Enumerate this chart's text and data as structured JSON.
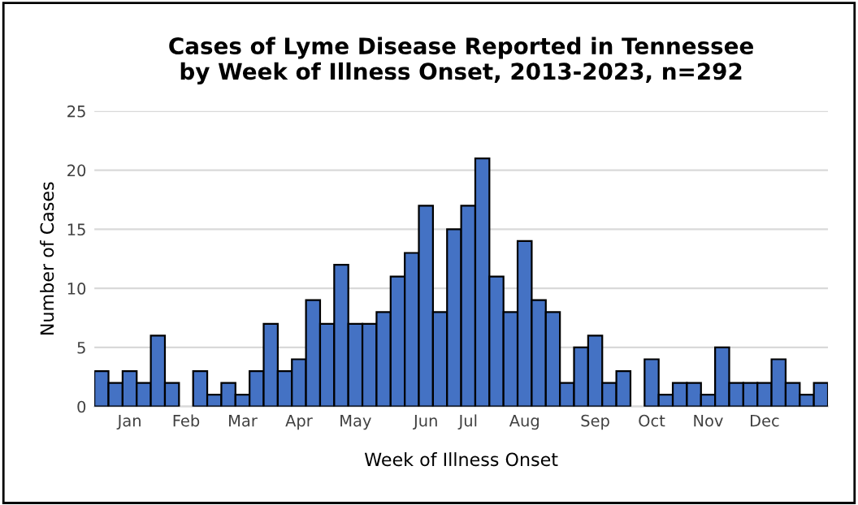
{
  "chart_data": {
    "type": "bar",
    "title": "Cases of Lyme Disease Reported in Tennessee\nby Week of Illness Onset, 2013-2023, n=292",
    "xlabel": "Week of Illness Onset",
    "ylabel": "Number of Cases",
    "categories": [
      null,
      null,
      "Jan",
      null,
      null,
      null,
      "Feb",
      null,
      null,
      null,
      "Mar",
      null,
      null,
      null,
      "Apr",
      null,
      null,
      null,
      "May",
      null,
      null,
      null,
      null,
      "Jun",
      null,
      null,
      "Jul",
      null,
      null,
      null,
      "Aug",
      null,
      null,
      null,
      null,
      "Sep",
      null,
      null,
      null,
      "Oct",
      null,
      null,
      null,
      "Nov",
      null,
      null,
      null,
      "Dec",
      null,
      null,
      null,
      null
    ],
    "values": [
      3,
      2,
      3,
      2,
      6,
      2,
      0,
      3,
      1,
      2,
      1,
      3,
      7,
      3,
      4,
      9,
      7,
      12,
      7,
      7,
      8,
      11,
      13,
      17,
      8,
      15,
      17,
      21,
      11,
      8,
      14,
      9,
      8,
      2,
      5,
      6,
      2,
      3,
      0,
      4,
      1,
      2,
      2,
      1,
      5,
      2,
      2,
      2,
      4,
      2,
      1,
      2
    ],
    "color": "#4472c4",
    "ylim": [
      0,
      25
    ],
    "yticks": [
      0,
      5,
      10,
      15,
      20,
      25
    ],
    "grid": "y"
  }
}
